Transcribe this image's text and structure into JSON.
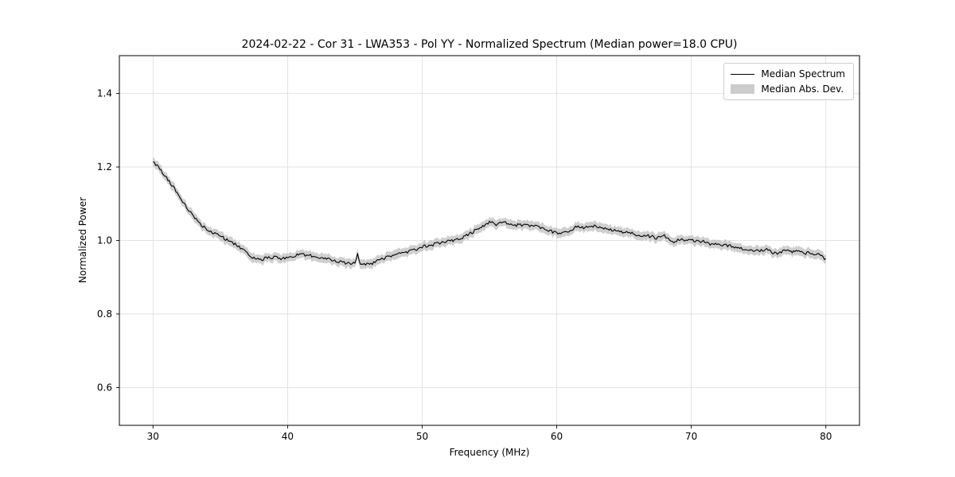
{
  "chart_data": {
    "type": "line",
    "title": "2024-02-22 - Cor 31 - LWA353 - Pol YY - Normalized Spectrum (Median power=18.0 CPU)",
    "xlabel": "Frequency (MHz)",
    "ylabel": "Normalized Power",
    "xlim": [
      27.5,
      82.5
    ],
    "ylim": [
      0.497,
      1.503
    ],
    "xticks": [
      30,
      40,
      50,
      60,
      70,
      80
    ],
    "xtick_labels": [
      "30",
      "40",
      "50",
      "60",
      "70",
      "80"
    ],
    "yticks": [
      0.6,
      0.8,
      1.0,
      1.2,
      1.4
    ],
    "ytick_labels": [
      "0.6",
      "0.8",
      "1.0",
      "1.2",
      "1.4"
    ],
    "grid": true,
    "grid_color": "#dcdcdc",
    "line_color": "#000000",
    "legend": {
      "position": "upper right",
      "entries": [
        {
          "label": "Median Spectrum",
          "type": "line",
          "color": "#000000"
        },
        {
          "label": "Median Abs. Dev.",
          "type": "patch",
          "color": "#cccccc"
        }
      ]
    },
    "series": [
      {
        "name": "Median Spectrum",
        "color": "#000000",
        "x": [
          30,
          30.5,
          31,
          31.5,
          32,
          32.5,
          33,
          33.5,
          34,
          34.5,
          35,
          35.5,
          36,
          36.5,
          37,
          37.5,
          38,
          38.5,
          39,
          39.5,
          40,
          40.5,
          41,
          41.5,
          42,
          42.5,
          43,
          43.5,
          44,
          44.5,
          45,
          45.2,
          45.4,
          46,
          46.5,
          47,
          47.5,
          48,
          48.5,
          49,
          49.5,
          50,
          50.5,
          51,
          51.5,
          52,
          52.5,
          53,
          53.5,
          54,
          54.5,
          55,
          55.5,
          56,
          56.5,
          57,
          57.5,
          58,
          58.5,
          59,
          59.5,
          60,
          60.5,
          61,
          61.5,
          62,
          62.5,
          63,
          63.5,
          64,
          64.5,
          65,
          65.5,
          66,
          66.5,
          67,
          67.5,
          68,
          68.5,
          69,
          69.5,
          70,
          70.5,
          71,
          71.5,
          72,
          72.5,
          73,
          73.5,
          74,
          74.5,
          75,
          75.5,
          76,
          76.5,
          77,
          77.5,
          78,
          78.5,
          79,
          79.5,
          80
        ],
        "y": [
          1.215,
          1.196,
          1.17,
          1.146,
          1.116,
          1.09,
          1.066,
          1.046,
          1.03,
          1.021,
          1.012,
          1.002,
          0.991,
          0.98,
          0.968,
          0.951,
          0.947,
          0.953,
          0.955,
          0.95,
          0.953,
          0.958,
          0.963,
          0.96,
          0.956,
          0.953,
          0.95,
          0.944,
          0.94,
          0.937,
          0.941,
          0.962,
          0.937,
          0.934,
          0.94,
          0.95,
          0.956,
          0.961,
          0.965,
          0.97,
          0.976,
          0.982,
          0.987,
          0.99,
          0.995,
          0.998,
          1.003,
          1.008,
          1.018,
          1.028,
          1.04,
          1.05,
          1.044,
          1.052,
          1.046,
          1.042,
          1.043,
          1.04,
          1.042,
          1.032,
          1.026,
          1.02,
          1.022,
          1.025,
          1.04,
          1.034,
          1.04,
          1.038,
          1.034,
          1.03,
          1.025,
          1.022,
          1.02,
          1.016,
          1.012,
          1.012,
          1.006,
          1.014,
          0.995,
          1.0,
          1.002,
          1.0,
          1.0,
          0.996,
          0.99,
          0.99,
          0.986,
          0.984,
          0.98,
          0.976,
          0.97,
          0.972,
          0.976,
          0.968,
          0.965,
          0.975,
          0.97,
          0.97,
          0.966,
          0.965,
          0.96,
          0.95
        ]
      }
    ],
    "band": {
      "name": "Median Abs. Dev.",
      "half_width": 0.012,
      "color": "#bfbfbf",
      "opacity": 0.75
    },
    "noise_amplitude": 0.0042
  }
}
